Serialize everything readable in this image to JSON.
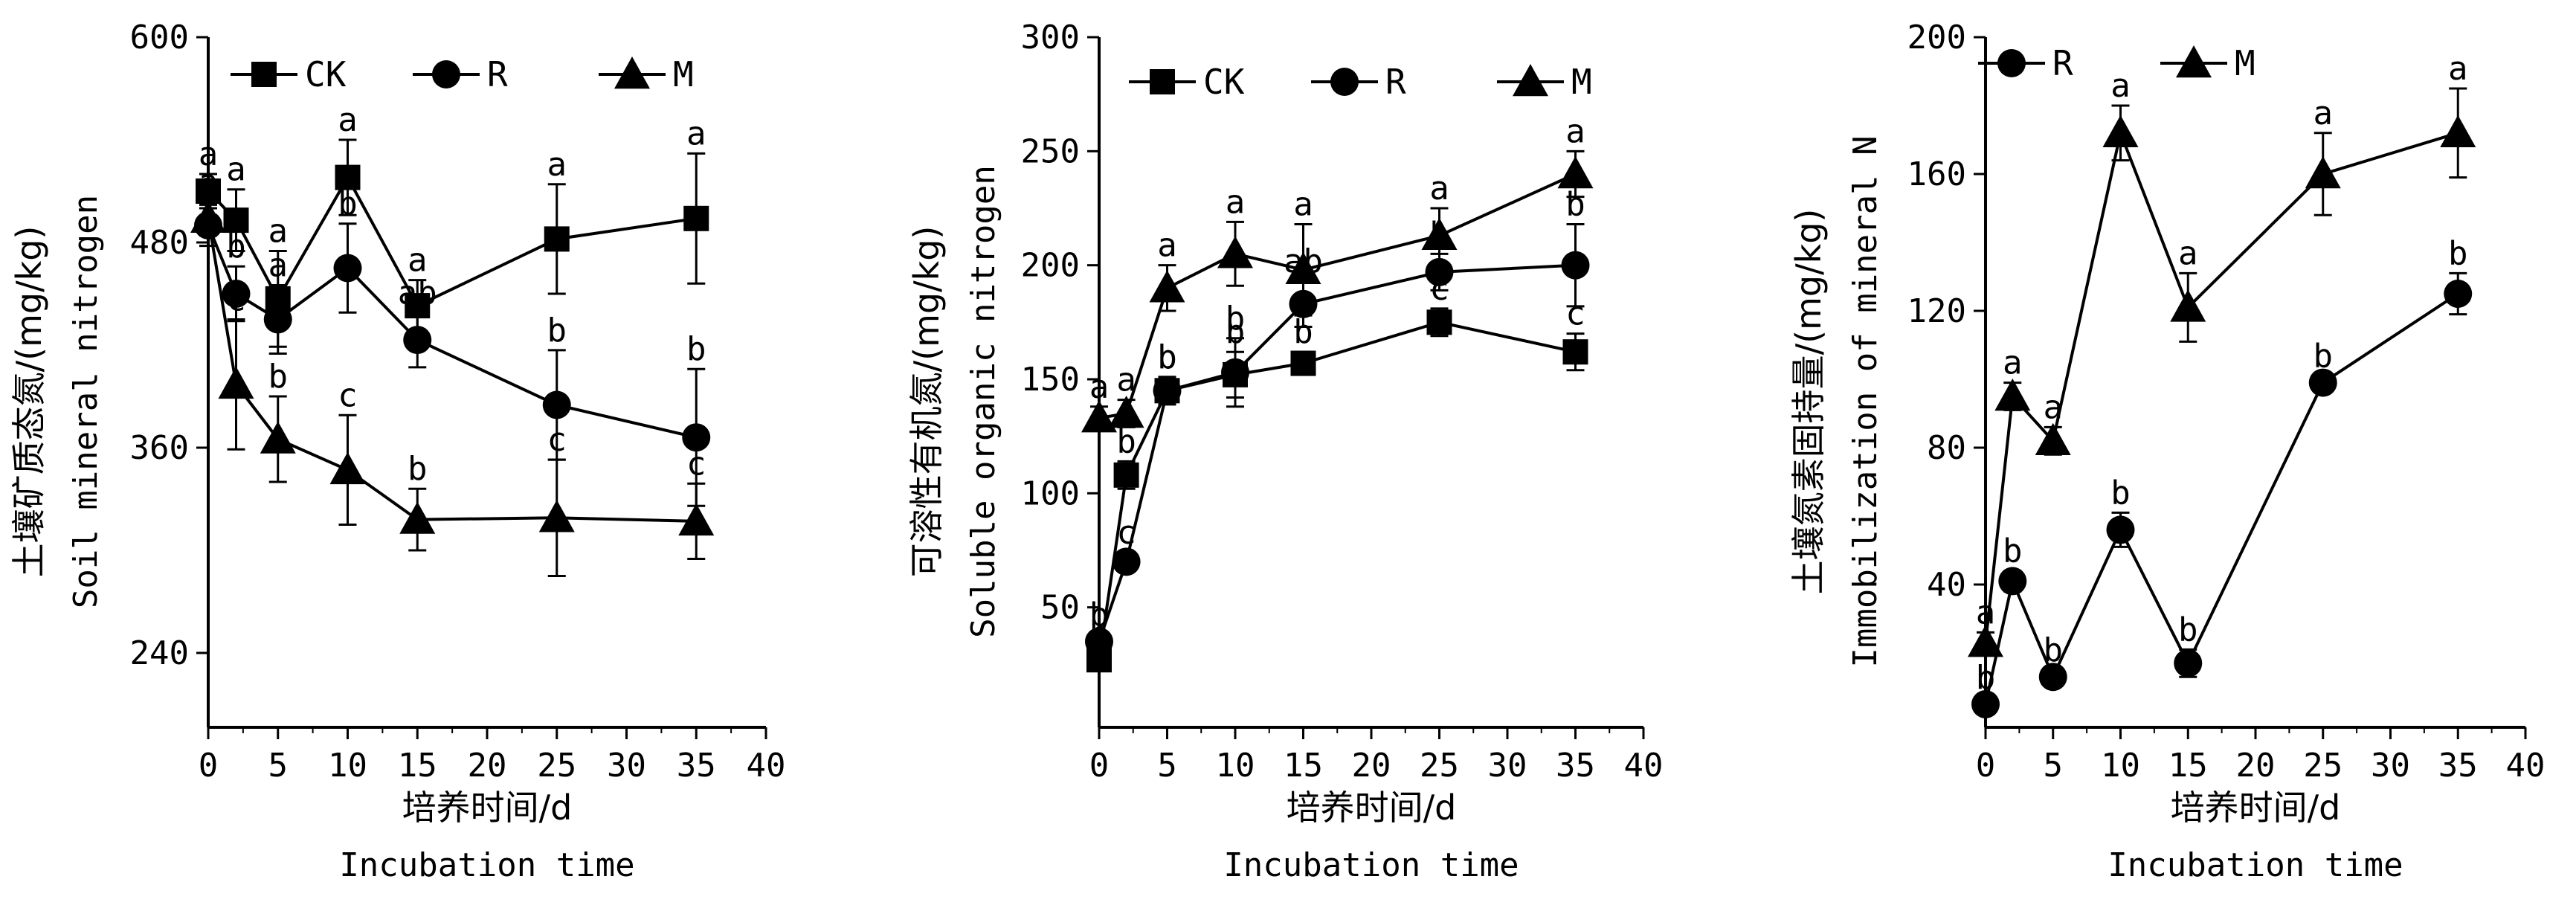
{
  "chart_data": [
    {
      "type": "line",
      "xlabel_cn": "培养时间/d",
      "xlabel_en": "Incubation time",
      "ylabel_cn": "土壤矿质态氮/(mg/kg)",
      "ylabel_en": "Soil mineral nitrogen",
      "xlim": [
        0,
        40
      ],
      "ylim": [
        200,
        600
      ],
      "xticks": [
        "0",
        "5",
        "10",
        "15",
        "20",
        "25",
        "30",
        "35",
        "40"
      ],
      "yticks": [
        "240",
        "360",
        "480",
        "600"
      ],
      "x": [
        0,
        2,
        5,
        10,
        15,
        25,
        35
      ],
      "legend": [
        "CK",
        "R",
        "M"
      ],
      "series": [
        {
          "name": "CK",
          "marker": "square",
          "values": [
            510,
            493,
            447,
            518,
            443,
            482,
            494
          ],
          "errors": [
            10,
            18,
            28,
            22,
            15,
            32,
            38
          ],
          "labels": [
            "a",
            "a",
            "a",
            "a",
            "a",
            "a",
            "a"
          ]
        },
        {
          "name": "R",
          "marker": "circle",
          "values": [
            490,
            450,
            435,
            465,
            423,
            385,
            366
          ],
          "errors": [
            12,
            16,
            20,
            26,
            16,
            32,
            40
          ],
          "labels": [
            "a",
            "b",
            "a",
            "b",
            "ab",
            "b",
            "b"
          ]
        },
        {
          "name": "M",
          "marker": "triangle",
          "values": [
            494,
            397,
            365,
            347,
            318,
            319,
            317
          ],
          "errors": [
            10,
            38,
            25,
            32,
            18,
            34,
            22
          ],
          "labels": [
            "a",
            "c",
            "b",
            "c",
            "b",
            "c",
            "c"
          ]
        }
      ]
    },
    {
      "type": "line",
      "xlabel_cn": "培养时间/d",
      "xlabel_en": "Incubation time",
      "ylabel_cn": "可溶性有机氮/(mg/kg)",
      "ylabel_en": "Soluble organic nitrogen",
      "xlim": [
        0,
        40
      ],
      "ylim": [
        0,
        300
      ],
      "xticks": [
        "0",
        "5",
        "10",
        "15",
        "20",
        "25",
        "30",
        "35",
        "40"
      ],
      "yticks": [
        "50",
        "100",
        "150",
        "200",
        "250",
        "300"
      ],
      "x": [
        0,
        2,
        5,
        10,
        15,
        25,
        35
      ],
      "legend": [
        "CK",
        "R",
        "M"
      ],
      "series": [
        {
          "name": "CK",
          "marker": "square",
          "values": [
            27,
            108,
            145,
            152,
            157,
            175,
            162
          ],
          "errors": [
            3,
            6,
            6,
            10,
            5,
            6,
            8
          ],
          "labels": [
            "b",
            "b",
            "b",
            "b",
            "b",
            "c",
            "c"
          ]
        },
        {
          "name": "R",
          "marker": "circle",
          "values": [
            35,
            70,
            145,
            153,
            183,
            197,
            200
          ],
          "errors": [
            3,
            4,
            6,
            15,
            10,
            8,
            18
          ],
          "labels": [
            "b",
            "c",
            "b",
            "b",
            "ab",
            "b",
            "b"
          ]
        },
        {
          "name": "M",
          "marker": "triangle",
          "values": [
            133,
            135,
            190,
            205,
            198,
            213,
            240
          ],
          "errors": [
            5,
            6,
            10,
            14,
            20,
            12,
            10
          ],
          "labels": [
            "a",
            "a",
            "a",
            "a",
            "a",
            "a",
            "a"
          ]
        }
      ]
    },
    {
      "type": "line",
      "xlabel_cn": "培养时间/d",
      "xlabel_en": "Incubation time",
      "ylabel_cn": "土壤氮素固持量/(mg/kg)",
      "ylabel_en": "Immobilization of mineral N",
      "xlim": [
        0,
        40
      ],
      "ylim": [
        0,
        200
      ],
      "xticks": [
        "0",
        "5",
        "10",
        "15",
        "20",
        "25",
        "30",
        "35",
        "40"
      ],
      "yticks": [
        "40",
        "80",
        "120",
        "160",
        "200"
      ],
      "x": [
        0,
        2,
        5,
        10,
        15,
        25,
        35
      ],
      "legend": [
        "R",
        "M"
      ],
      "series": [
        {
          "name": "R",
          "marker": "circle",
          "values": [
            5,
            41,
            13,
            56,
            17,
            99,
            125
          ],
          "errors": [
            2,
            3,
            2,
            5,
            4,
            2,
            6
          ],
          "labels": [
            "b",
            "b",
            "b",
            "b",
            "b",
            "b",
            "b"
          ]
        },
        {
          "name": "M",
          "marker": "triangle",
          "values": [
            23,
            95,
            82,
            172,
            121,
            160,
            172
          ],
          "errors": [
            3,
            4,
            4,
            8,
            10,
            12,
            13
          ],
          "labels": [
            "a",
            "a",
            "a",
            "a",
            "a",
            "a",
            "a"
          ]
        }
      ]
    }
  ]
}
